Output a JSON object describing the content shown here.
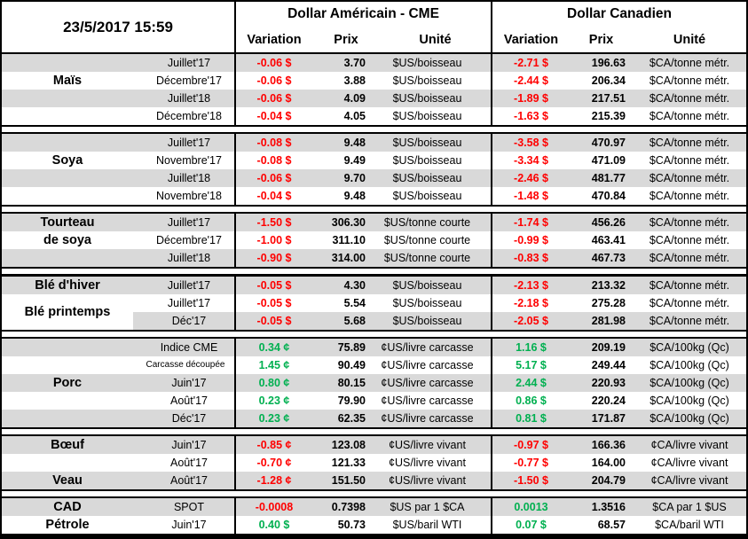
{
  "colors": {
    "negative": "#FF0000",
    "positive": "#00B050",
    "row_shade": "#D9D9D9",
    "border": "#000000"
  },
  "chart_data": {
    "type": "table",
    "title": "23/5/2017 15:59",
    "column_groups": [
      "Dollar Américain - CME",
      "Dollar Canadien"
    ],
    "columns": [
      "Variation",
      "Prix",
      "Unité",
      "Variation",
      "Prix",
      "Unité"
    ],
    "sections": [
      {
        "labels": [
          {
            "text": "Maïs",
            "row": 2,
            "span": 1
          }
        ],
        "rows": [
          [
            "Juillet'17",
            "-0.06 $",
            "3.70",
            "$US/boisseau",
            "-2.71 $",
            "196.63",
            "$CA/tonne métr."
          ],
          [
            "Décembre'17",
            "-0.06 $",
            "3.88",
            "$US/boisseau",
            "-2.44 $",
            "206.34",
            "$CA/tonne métr."
          ],
          [
            "Juillet'18",
            "-0.06 $",
            "4.09",
            "$US/boisseau",
            "-1.89 $",
            "217.51",
            "$CA/tonne métr."
          ],
          [
            "Décembre'18",
            "-0.04 $",
            "4.05",
            "$US/boisseau",
            "-1.63 $",
            "215.39",
            "$CA/tonne métr."
          ]
        ]
      },
      {
        "labels": [
          {
            "text": "Soya",
            "row": 2,
            "span": 1
          }
        ],
        "rows": [
          [
            "Juillet'17",
            "-0.08 $",
            "9.48",
            "$US/boisseau",
            "-3.58 $",
            "470.97",
            "$CA/tonne métr."
          ],
          [
            "Novembre'17",
            "-0.08 $",
            "9.49",
            "$US/boisseau",
            "-3.34 $",
            "471.09",
            "$CA/tonne métr."
          ],
          [
            "Juillet'18",
            "-0.06 $",
            "9.70",
            "$US/boisseau",
            "-2.46 $",
            "481.77",
            "$CA/tonne métr."
          ],
          [
            "Novembre'18",
            "-0.04 $",
            "9.48",
            "$US/boisseau",
            "-1.48 $",
            "470.84",
            "$CA/tonne métr."
          ]
        ]
      },
      {
        "labels": [
          {
            "text": "Tourteau",
            "row": 1,
            "span": 1
          },
          {
            "text": "de soya",
            "row": 2,
            "span": 1
          }
        ],
        "thick_separator_below": true,
        "rows": [
          [
            "Juillet'17",
            "-1.50 $",
            "306.30",
            "$US/tonne courte",
            "-1.74 $",
            "456.26",
            "$CA/tonne métr."
          ],
          [
            "Décembre'17",
            "-1.00 $",
            "311.10",
            "$US/tonne courte",
            "-0.99 $",
            "463.41",
            "$CA/tonne métr."
          ],
          [
            "Juillet'18",
            "-0.90 $",
            "314.00",
            "$US/tonne courte",
            "-0.83 $",
            "467.73",
            "$CA/tonne métr."
          ]
        ]
      },
      {
        "labels": [
          {
            "text": "Blé d'hiver",
            "row": 1,
            "span": 1
          },
          {
            "text": "Blé printemps",
            "row": 2,
            "span": 2,
            "white_bg": true
          }
        ],
        "rows": [
          [
            "Juillet'17",
            "-0.05 $",
            "4.30",
            "$US/boisseau",
            "-2.13 $",
            "213.32",
            "$CA/tonne métr."
          ],
          [
            "Juillet'17",
            "-0.05 $",
            "5.54",
            "$US/boisseau",
            "-2.18 $",
            "275.28",
            "$CA/tonne métr."
          ],
          [
            "Déc'17",
            "-0.05 $",
            "5.68",
            "$US/boisseau",
            "-2.05 $",
            "281.98",
            "$CA/tonne métr."
          ]
        ]
      },
      {
        "labels": [
          {
            "text": "Porc",
            "row": 3,
            "span": 1
          }
        ],
        "rows": [
          [
            "Indice CME",
            "0.34 ¢",
            "75.89",
            "¢US/livre carcasse",
            "1.16 $",
            "209.19",
            "$CA/100kg (Qc)"
          ],
          [
            "Carcasse découpée",
            "1.45 ¢",
            "90.49",
            "¢US/livre carcasse",
            "5.17 $",
            "249.44",
            "$CA/100kg (Qc)"
          ],
          [
            "Juin'17",
            "0.80 ¢",
            "80.15",
            "¢US/livre carcasse",
            "2.44 $",
            "220.93",
            "$CA/100kg (Qc)"
          ],
          [
            "Août'17",
            "0.23 ¢",
            "79.90",
            "¢US/livre carcasse",
            "0.86 $",
            "220.24",
            "$CA/100kg (Qc)"
          ],
          [
            "Déc'17",
            "0.23 ¢",
            "62.35",
            "¢US/livre carcasse",
            "0.81 $",
            "171.87",
            "$CA/100kg (Qc)"
          ]
        ]
      },
      {
        "labels": [
          {
            "text": "Bœuf",
            "row": 1,
            "span": 1
          },
          {
            "text": "Veau",
            "row": 3,
            "span": 1
          }
        ],
        "rows": [
          [
            "Juin'17",
            "-0.85 ¢",
            "123.08",
            "¢US/livre vivant",
            "-0.97 $",
            "166.36",
            "¢CA/livre vivant"
          ],
          [
            "Août'17",
            "-0.70 ¢",
            "121.33",
            "¢US/livre vivant",
            "-0.77 $",
            "164.00",
            "¢CA/livre vivant"
          ],
          [
            "Août'17",
            "-1.28 ¢",
            "151.50",
            "¢US/livre vivant",
            "-1.50 $",
            "204.79",
            "¢CA/livre vivant"
          ]
        ]
      },
      {
        "labels": [
          {
            "text": "CAD",
            "row": 1,
            "span": 1
          },
          {
            "text": "Pétrole",
            "row": 2,
            "span": 1
          }
        ],
        "rows": [
          [
            "SPOT",
            "-0.0008",
            "0.7398",
            "$US par 1 $CA",
            "0.0013",
            "1.3516",
            "$CA par 1 $US"
          ],
          [
            "Juin'17",
            "0.40 $",
            "50.73",
            "$US/baril WTI",
            "0.07 $",
            "68.57",
            "$CA/baril WTI"
          ]
        ]
      }
    ]
  }
}
